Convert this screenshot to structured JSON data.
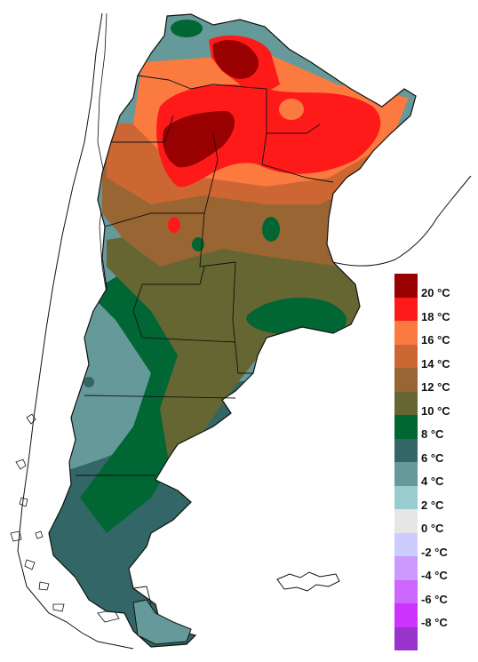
{
  "legend": {
    "items": [
      {
        "label": "20 °C",
        "color": "#990000"
      },
      {
        "label": "18 °C",
        "color": "#ff1a1a"
      },
      {
        "label": "16 °C",
        "color": "#fb7a3f"
      },
      {
        "label": "14 °C",
        "color": "#cc6633"
      },
      {
        "label": "12 °C",
        "color": "#996633"
      },
      {
        "label": "10 °C",
        "color": "#666633"
      },
      {
        "label": "8 °C",
        "color": "#006633"
      },
      {
        "label": "6 °C",
        "color": "#336666"
      },
      {
        "label": "4 °C",
        "color": "#669999"
      },
      {
        "label": "2 °C",
        "color": "#99cccc"
      },
      {
        "label": "0 °C",
        "color": "#e6e6e6"
      },
      {
        "label": "-2 °C",
        "color": "#ccccff"
      },
      {
        "label": "-4 °C",
        "color": "#cc99ff"
      },
      {
        "label": "-6 °C",
        "color": "#cc66ff"
      },
      {
        "label": "-8 °C",
        "color": "#cc33ff"
      },
      {
        "label": "",
        "color": "#9933cc"
      }
    ]
  }
}
